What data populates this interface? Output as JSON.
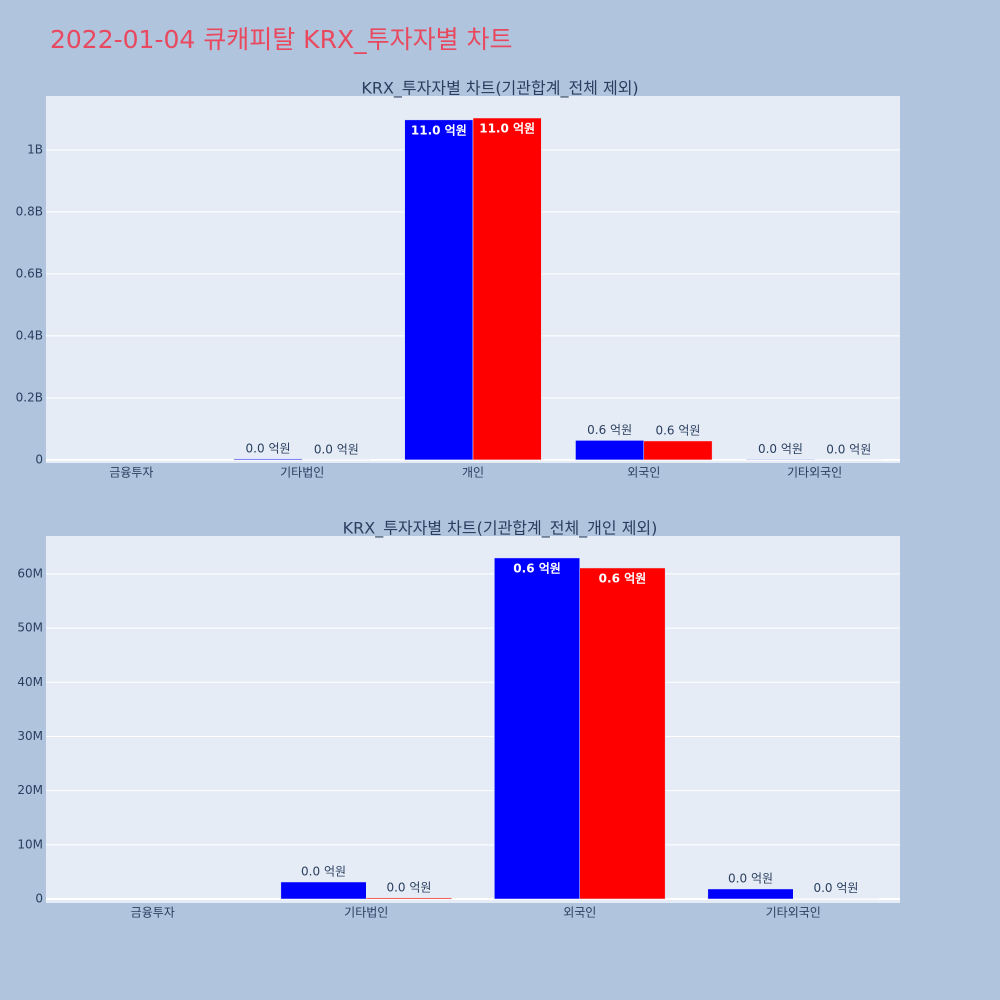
{
  "title": "2022-01-04 큐캐피탈 KRX_투자자별 차트",
  "chart_data": [
    {
      "type": "bar",
      "title": "KRX_투자자별 차트(기관합계_전체 제외)",
      "categories": [
        "금융투자",
        "기타법인",
        "개인",
        "외국인",
        "기타외국인"
      ],
      "series": [
        {
          "color": "#0000ff",
          "values": [
            0,
            3140000,
            1097000000,
            62950000,
            1850000
          ],
          "value_labels": [
            null,
            "0.0 억원",
            "11.0 억원",
            "0.6 억원",
            "0.0 억원"
          ]
        },
        {
          "color": "#ff0000",
          "values": [
            0,
            200000,
            1103000000,
            61100000,
            50000
          ],
          "value_labels": [
            null,
            "0.0 억원",
            "11.0 억원",
            "0.6 억원",
            "0.0 억원"
          ]
        }
      ],
      "ylim": [
        -10000000,
        1174000000
      ],
      "yticks": [
        0,
        {
          "value": 200000000,
          "label": "0.2B"
        },
        {
          "value": 400000000,
          "label": "0.4B"
        },
        {
          "value": 600000000,
          "label": "0.6B"
        },
        {
          "value": 800000000,
          "label": "0.8B"
        },
        {
          "value": 1000000000,
          "label": "1B"
        }
      ],
      "grid": true
    },
    {
      "type": "bar",
      "title": "KRX_투자자별 차트(기관합계_전체_개인 제외)",
      "categories": [
        "금융투자",
        "기타법인",
        "외국인",
        "기타외국인"
      ],
      "series": [
        {
          "color": "#0000ff",
          "values": [
            0,
            3140000,
            62950000,
            1850000
          ],
          "value_labels": [
            null,
            "0.0 억원",
            "0.6 억원",
            "0.0 억원"
          ]
        },
        {
          "color": "#ff0000",
          "values": [
            0,
            200000,
            61100000,
            50000
          ],
          "value_labels": [
            null,
            "0.0 억원",
            "0.6 억원",
            "0.0 억원"
          ]
        }
      ],
      "ylim": [
        -740000,
        67000000
      ],
      "yticks": [
        0,
        {
          "value": 10000000,
          "label": "10M"
        },
        {
          "value": 20000000,
          "label": "20M"
        },
        {
          "value": 30000000,
          "label": "30M"
        },
        {
          "value": 40000000,
          "label": "40M"
        },
        {
          "value": 50000000,
          "label": "50M"
        },
        {
          "value": 60000000,
          "label": "60M"
        }
      ],
      "grid": true
    }
  ]
}
